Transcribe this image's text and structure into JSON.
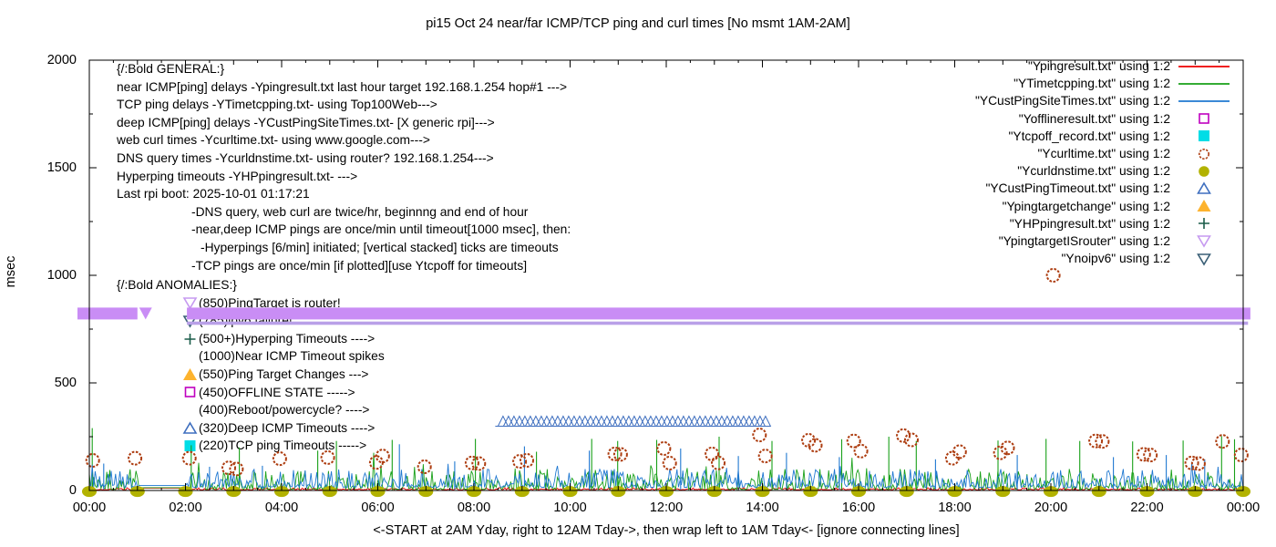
{
  "title": "pi15 Oct 24  near/far ICMP/TCP ping and curl times [No msmt 1AM-2AM]",
  "y_axis": {
    "label": "msec",
    "tick_labels": [
      "2000",
      "1500",
      "1000",
      "500",
      "0"
    ],
    "min": 0,
    "max": 2000
  },
  "x_axis": {
    "label": "<-START at 2AM Yday, right to 12AM Tday->, then wrap left to 1AM Tday<- [ignore connecting lines]",
    "ticks": [
      "00:00",
      "02:00",
      "04:00",
      "06:00",
      "08:00",
      "10:00",
      "12:00",
      "14:00",
      "16:00",
      "18:00",
      "20:00",
      "22:00",
      "00:00"
    ]
  },
  "legend": {
    "entries": [
      {
        "label": "\"Ypingresult.txt\" using 1:2",
        "marker": "line",
        "color": "#ee0000"
      },
      {
        "label": "\"YTimetcpping.txt\" using 1:2",
        "marker": "line",
        "color": "#18a018"
      },
      {
        "label": "\"YCustPingSiteTimes.txt\" using 1:2",
        "marker": "line",
        "color": "#1f78d1"
      },
      {
        "label": "\"Yofflineresult.txt\" using 1:2",
        "marker": "square-open",
        "color": "#bf00bf"
      },
      {
        "label": "\"Ytcpoff_record.txt\" using 1:2",
        "marker": "square-filled",
        "color": "#00dde6"
      },
      {
        "label": "\"Ycurltime.txt\" using 1:2",
        "marker": "circle-open",
        "color": "#ad3d10"
      },
      {
        "label": "\"Ycurldnstime.txt\" using 1:2",
        "marker": "circle-filled",
        "color": "#b2b200"
      },
      {
        "label": "\"YCustPingTimeout.txt\" using 1:2",
        "marker": "triangle-open",
        "color": "#3f6fbf"
      },
      {
        "label": "\"Ypingtargetchange\" using 1:2",
        "marker": "triangle-filled",
        "color": "#fdb32e"
      },
      {
        "label": "\"YHPpingresult.txt\" using 1:2",
        "marker": "plus",
        "color": "#1a5c49"
      },
      {
        "label": "\"YpingtargetISrouter\" using 1:2",
        "marker": "tridown-open",
        "color": "#c69af0"
      },
      {
        "label": "\"Ynoipv6\" using 1:2",
        "marker": "tridown-open",
        "color": "#3a5f76"
      }
    ]
  },
  "annotations": {
    "general": {
      "lines": [
        "{/:Bold GENERAL:}",
        "near ICMP[ping] delays -Ypingresult.txt last hour target 192.168.1.254 hop#1 --->",
        "TCP ping delays -YTimetcpping.txt- using Top100Web--->",
        "deep ICMP[ping] delays -YCustPingSiteTimes.txt- [X generic rpi]--->",
        "web curl times -Ycurltime.txt- using www.google.com--->",
        "DNS query times -Ycurldnstime.txt- using router? 192.168.1.254--->",
        "Hyperping timeouts -YHPpingresult.txt- --->",
        "Last rpi boot: 2025-10-01 01:17:21",
        "-DNS query, web curl are twice/hr, beginnng and end of hour",
        "-near,deep ICMP pings are once/min until timeout[1000 msec], then:",
        "-Hyperpings [6/min] initiated; [vertical stacked] ticks are timeouts",
        "-TCP pings are once/min [if plotted][use Ytcpoff for timeouts]"
      ]
    },
    "anomalies": {
      "header": "{/:Bold ANOMALIES:}",
      "rows": [
        {
          "text": "(850)PingTarget is router!",
          "marker": "tridown-open",
          "color": "#c69af0"
        },
        {
          "text": "(785)ipv6 failure!",
          "marker": "tridown-open",
          "color": "#3a5f76"
        },
        {
          "text": "(500+)Hyperping Timeouts ---->",
          "marker": "plus",
          "color": "#1a5c49"
        },
        {
          "text": "(1000)Near ICMP Timeout spikes",
          "marker": "none",
          "color": "#000000"
        },
        {
          "text": "(550)Ping Target Changes --->",
          "marker": "triangle-filled",
          "color": "#fdb32e"
        },
        {
          "text": "(450)OFFLINE STATE ----->",
          "marker": "square-open",
          "color": "#bf00bf"
        },
        {
          "text": "(400)Reboot/powercycle? ---->",
          "marker": "none",
          "color": "#000000"
        },
        {
          "text": "(320)Deep ICMP Timeouts ---->",
          "marker": "triangle-open",
          "color": "#3f6fbf"
        },
        {
          "text": "(220)TCP ping Timeouts ----->",
          "marker": "square-filled",
          "color": "#00dde6"
        }
      ]
    }
  },
  "chart_data": {
    "type": "line+scatter",
    "x_unit": "hour_of_day",
    "xlim_hours": [
      0,
      24
    ],
    "ylim": [
      0,
      2000
    ],
    "grid": false,
    "legend_position": "top-right",
    "noise_seed": 1337,
    "no_measurement_gap_hours": [
      1.02,
      2.03
    ],
    "series": [
      {
        "name": "Ypingresult.txt",
        "desc": "near ICMP ping delays",
        "type": "line",
        "color": "#ee0000",
        "base_msec": 3,
        "noise_max_msec": 10,
        "spikes": []
      },
      {
        "name": "YTimetcpping.txt",
        "desc": "TCP ping delays",
        "type": "line",
        "color": "#18a018",
        "base_msec": 5,
        "noise_max_msec": 95,
        "spikes": [
          [
            0.06,
            290
          ],
          [
            2.12,
            210
          ],
          [
            3.12,
            200
          ],
          [
            4.75,
            185
          ],
          [
            5.14,
            230
          ],
          [
            6.3,
            235
          ],
          [
            8.03,
            240
          ],
          [
            9.3,
            180
          ],
          [
            10.45,
            240
          ],
          [
            10.99,
            230
          ],
          [
            11.8,
            235
          ],
          [
            13.1,
            250
          ],
          [
            14.2,
            230
          ],
          [
            15.65,
            238
          ],
          [
            16.63,
            250
          ],
          [
            17.2,
            230
          ],
          [
            18.9,
            232
          ],
          [
            19.9,
            240
          ],
          [
            20.6,
            230
          ],
          [
            21.7,
            228
          ],
          [
            22.75,
            232
          ],
          [
            23.55,
            252
          ],
          [
            23.82,
            238
          ]
        ]
      },
      {
        "name": "YCustPingSiteTimes.txt",
        "desc": "deep ICMP ping delays",
        "type": "line",
        "color": "#1f78d1",
        "base_msec": 15,
        "noise_max_msec": 85,
        "spikes": [
          [
            0.3,
            125
          ],
          [
            2.5,
            110
          ],
          [
            3.6,
            115
          ],
          [
            6.45,
            215
          ],
          [
            7.6,
            135
          ],
          [
            9.05,
            205
          ],
          [
            10.4,
            185
          ],
          [
            12.3,
            195
          ],
          [
            13.5,
            160
          ],
          [
            14.5,
            175
          ],
          [
            15.6,
            155
          ],
          [
            17.6,
            145
          ],
          [
            19.3,
            165
          ],
          [
            21.3,
            155
          ],
          [
            22.4,
            165
          ],
          [
            23.2,
            145
          ]
        ]
      },
      {
        "name": "Yofflineresult.txt",
        "type": "scatter",
        "marker": "square-open",
        "color": "#bf00bf",
        "points": []
      },
      {
        "name": "Ytcpoff_record.txt",
        "type": "scatter",
        "marker": "square-filled",
        "color": "#00dde6",
        "points": []
      },
      {
        "name": "Ycurltime.txt",
        "desc": "web curl times",
        "type": "scatter",
        "marker": "circle-open",
        "color": "#ad3d10",
        "points": [
          [
            0.07,
            140
          ],
          [
            0.95,
            150
          ],
          [
            2.08,
            150
          ],
          [
            2.9,
            105
          ],
          [
            3.06,
            100
          ],
          [
            3.96,
            148
          ],
          [
            4.96,
            153
          ],
          [
            5.97,
            130
          ],
          [
            6.1,
            160
          ],
          [
            6.97,
            110
          ],
          [
            7.96,
            128
          ],
          [
            8.1,
            125
          ],
          [
            8.95,
            135
          ],
          [
            9.1,
            140
          ],
          [
            10.93,
            170
          ],
          [
            11.05,
            168
          ],
          [
            11.95,
            195
          ],
          [
            12.07,
            127
          ],
          [
            12.95,
            170
          ],
          [
            13.08,
            128
          ],
          [
            13.94,
            258
          ],
          [
            14.06,
            160
          ],
          [
            14.96,
            233
          ],
          [
            15.1,
            210
          ],
          [
            15.9,
            230
          ],
          [
            16.05,
            183
          ],
          [
            16.93,
            255
          ],
          [
            17.1,
            235
          ],
          [
            17.95,
            150
          ],
          [
            18.1,
            180
          ],
          [
            18.95,
            175
          ],
          [
            19.1,
            198
          ],
          [
            20.05,
            1000
          ],
          [
            20.93,
            230
          ],
          [
            21.07,
            228
          ],
          [
            21.93,
            168
          ],
          [
            22.07,
            165
          ],
          [
            22.93,
            128
          ],
          [
            23.07,
            125
          ],
          [
            23.57,
            228
          ],
          [
            23.96,
            165
          ]
        ]
      },
      {
        "name": "Ycurldnstime.txt",
        "desc": "DNS query times",
        "type": "scatter",
        "marker": "circle-filled",
        "color": "#b2b200",
        "points": [
          [
            0,
            4
          ],
          [
            1,
            4
          ],
          [
            2,
            4
          ],
          [
            3,
            4
          ],
          [
            4,
            4
          ],
          [
            5,
            4
          ],
          [
            6,
            4
          ],
          [
            7,
            4
          ],
          [
            8,
            4
          ],
          [
            9,
            4
          ],
          [
            10,
            4
          ],
          [
            11,
            4
          ],
          [
            12,
            4
          ],
          [
            13,
            4
          ],
          [
            14,
            4
          ],
          [
            15,
            4
          ],
          [
            16,
            4
          ],
          [
            17,
            4
          ],
          [
            18,
            4
          ],
          [
            19,
            4
          ],
          [
            20,
            4
          ],
          [
            21,
            4
          ],
          [
            22,
            4
          ],
          [
            23,
            4
          ],
          [
            24,
            4
          ]
        ]
      },
      {
        "name": "YCustPingTimeout.txt",
        "desc": "deep ICMP timeouts",
        "type": "marker-row",
        "marker": "triangle-open",
        "color": "#3f6fbf",
        "value_msec": 320,
        "from_hour": 8.5,
        "to_hour": 14.0
      },
      {
        "name": "Ypingtargetchange",
        "type": "scatter",
        "marker": "triangle-filled",
        "color": "#fdb32e",
        "points": []
      },
      {
        "name": "YHPpingresult.txt",
        "desc": "hyperping timeouts",
        "type": "scatter",
        "marker": "plus",
        "color": "#1a5c49",
        "points": []
      },
      {
        "name": "YpingtargetISrouter",
        "type": "band",
        "marker": "tridown-open",
        "color": "#c98df5",
        "value_msec": 850,
        "segments": [
          [
            -0.25,
            1.0
          ],
          [
            2.03,
            24.15
          ]
        ]
      },
      {
        "name": "Ynoipv6",
        "type": "band",
        "marker": "tridown-open",
        "color": "#b9a0e8",
        "value_msec": 785,
        "segments": [
          [
            2.03,
            24.1
          ]
        ]
      }
    ]
  }
}
